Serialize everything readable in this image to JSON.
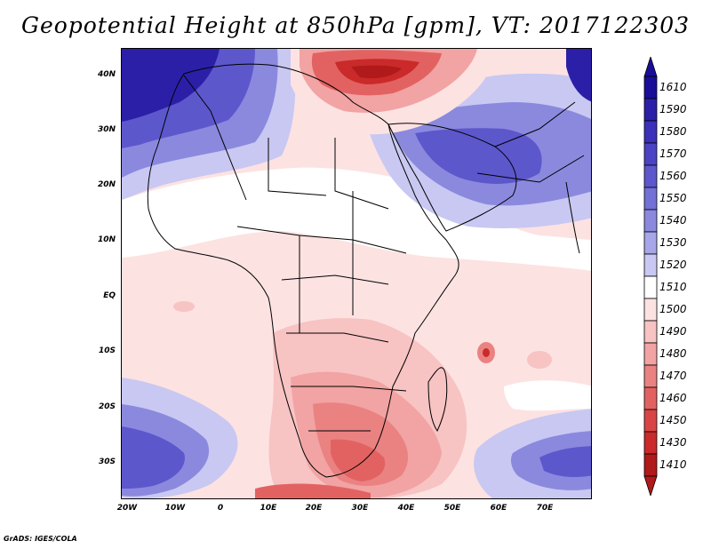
{
  "title": "Geopotential Height at 850hPa [gpm], VT: 2017122303",
  "credit": "GrADS: IGES/COLA",
  "map": {
    "region": "Africa and Arabian Peninsula",
    "variable": "Geopotential Height at 850hPa",
    "units": "gpm",
    "valid_time": "2017122303",
    "lat_labels": [
      "40N",
      "30N",
      "20N",
      "10N",
      "EQ",
      "10S",
      "20S",
      "30S"
    ],
    "lon_labels": [
      "20W",
      "10W",
      "0",
      "10E",
      "20E",
      "30E",
      "40E",
      "50E",
      "60E",
      "70E"
    ]
  },
  "colorbar": {
    "levels": [
      "1610",
      "1590",
      "1580",
      "1570",
      "1560",
      "1550",
      "1540",
      "1530",
      "1520",
      "1510",
      "1500",
      "1490",
      "1480",
      "1470",
      "1460",
      "1450",
      "1430",
      "1410"
    ],
    "colors": [
      "#1a0d99",
      "#2b1fa8",
      "#3b30b8",
      "#4b43c4",
      "#5d57cc",
      "#7370d6",
      "#8b89de",
      "#a7a6e8",
      "#c8c8f2",
      "#ffffff",
      "#fde2e2",
      "#f7c3c3",
      "#f2a3a3",
      "#ea8282",
      "#e26262",
      "#d94545",
      "#ca2a2a",
      "#b01a1a"
    ]
  }
}
